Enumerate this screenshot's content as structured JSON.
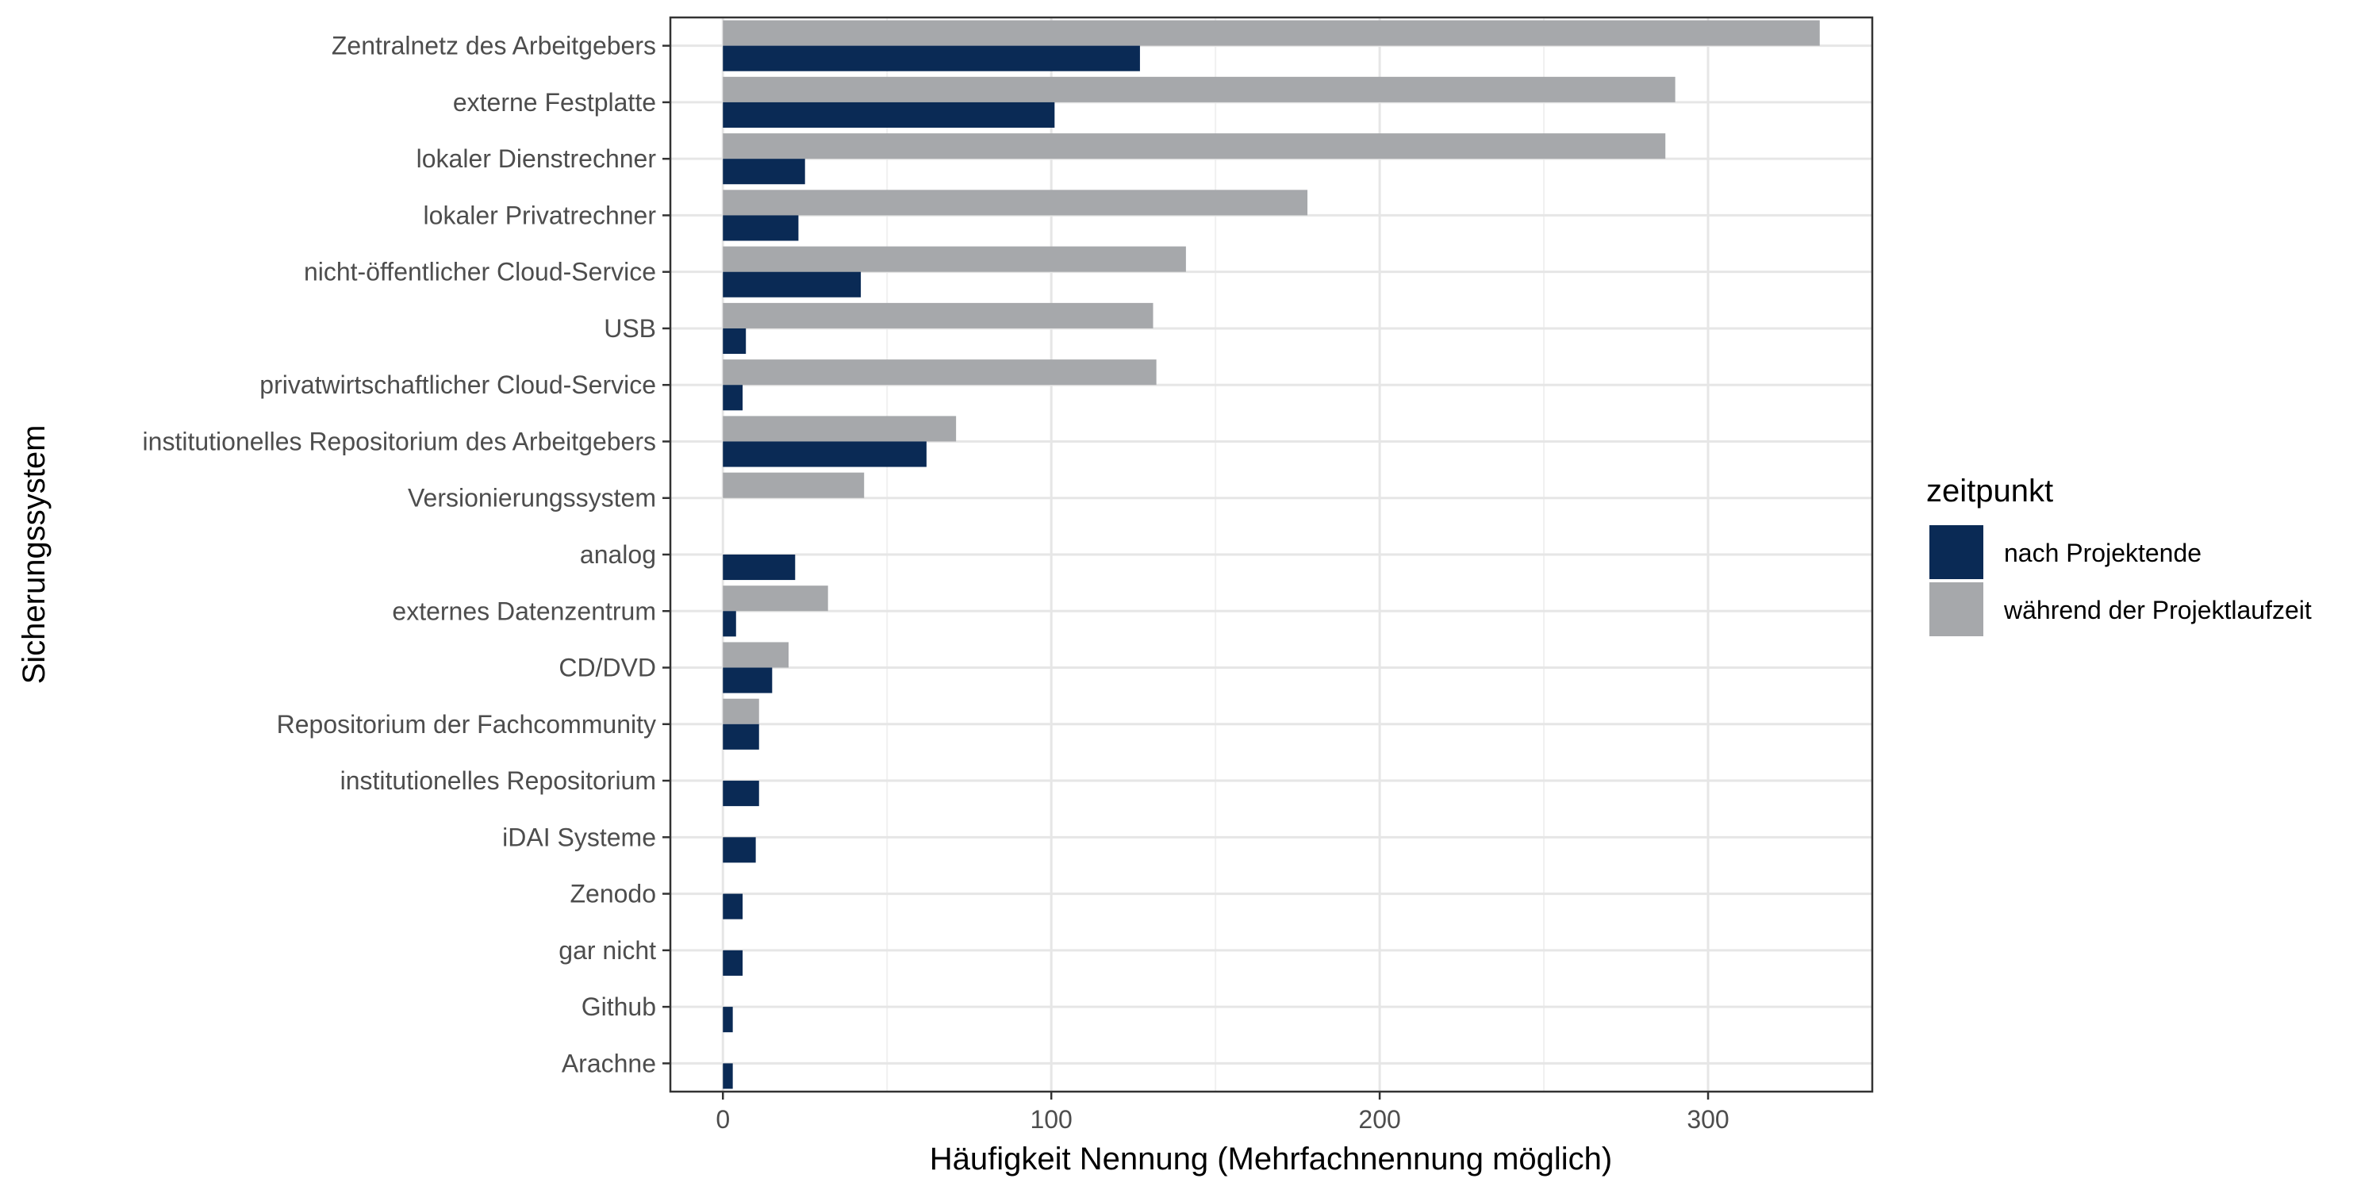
{
  "chart_data": {
    "type": "bar",
    "orientation": "horizontal",
    "categories": [
      "Zentralnetz des Arbeitgebers",
      "externe Festplatte",
      "lokaler Dienstrechner",
      "lokaler Privatrechner",
      "nicht-öffentlicher Cloud-Service",
      "USB",
      "privatwirtschaftlicher Cloud-Service",
      "institutionelles Repositorium des Arbeitgebers",
      "Versionierungssystem",
      "analog",
      "externes Datenzentrum",
      "CD/DVD",
      "Repositorium der Fachcommunity",
      "institutionelles Repositorium",
      "iDAI Systeme",
      "Zenodo",
      "gar nicht",
      "Github",
      "Arachne"
    ],
    "series": [
      {
        "name": "nach Projektende",
        "color": "#0a2a55",
        "values": [
          127,
          101,
          25,
          23,
          42,
          7,
          6,
          62,
          0,
          22,
          4,
          15,
          11,
          11,
          10,
          6,
          6,
          3,
          3
        ]
      },
      {
        "name": "während der Projektlaufzeit",
        "color": "#a6a8ab",
        "values": [
          334,
          290,
          287,
          178,
          141,
          131,
          132,
          71,
          43,
          0,
          32,
          20,
          11,
          0,
          0,
          0,
          0,
          0,
          0
        ]
      }
    ],
    "xlabel": "Häufigkeit Nennung (Mehrfachnennung möglich)",
    "ylabel": "Sicherungssystem",
    "xlim": [
      -16,
      350
    ],
    "xticks": [
      0,
      100,
      200,
      300
    ],
    "grid": true,
    "legend": {
      "title": "zeitpunkt",
      "position": "right"
    }
  }
}
